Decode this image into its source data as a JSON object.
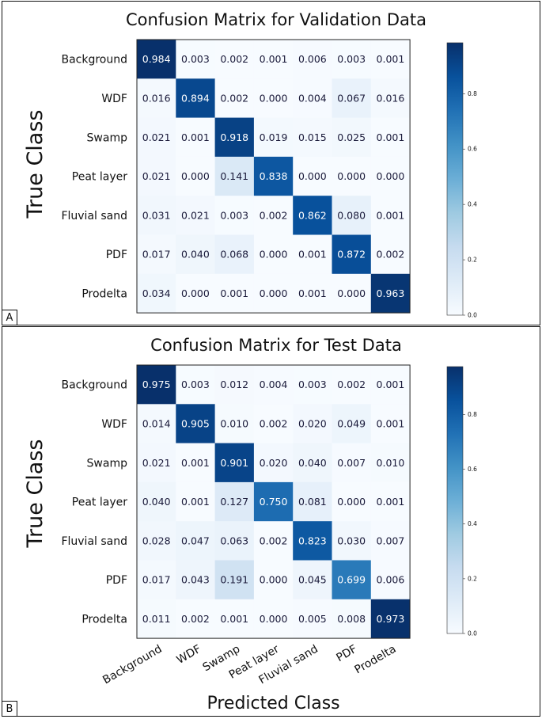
{
  "chart_data": [
    {
      "type": "heatmap",
      "panel": "A",
      "title": "Confusion Matrix for Validation Data",
      "ylabel": "True Class",
      "xlabel": "",
      "row_labels": [
        "Background",
        "WDF",
        "Swamp",
        "Peat layer",
        "Fluvial sand",
        "PDF",
        "Prodelta"
      ],
      "col_labels": [],
      "values": [
        [
          0.984,
          0.003,
          0.002,
          0.001,
          0.006,
          0.003,
          0.001
        ],
        [
          0.016,
          0.894,
          0.002,
          0.0,
          0.004,
          0.067,
          0.016
        ],
        [
          0.021,
          0.001,
          0.918,
          0.019,
          0.015,
          0.025,
          0.001
        ],
        [
          0.021,
          0.0,
          0.141,
          0.838,
          0.0,
          0.0,
          0.0
        ],
        [
          0.031,
          0.021,
          0.003,
          0.002,
          0.862,
          0.08,
          0.001
        ],
        [
          0.017,
          0.04,
          0.068,
          0.0,
          0.001,
          0.872,
          0.002
        ],
        [
          0.034,
          0.0,
          0.001,
          0.0,
          0.001,
          0.0,
          0.963
        ]
      ],
      "colorbar": {
        "ticks": [
          "0.0",
          "0.2",
          "0.4",
          "0.6",
          "0.8"
        ],
        "tick_values": [
          0,
          0.2,
          0.4,
          0.6,
          0.8
        ],
        "range": [
          0,
          0.984
        ]
      },
      "colormap": [
        "#f7fbff",
        "#deebf7",
        "#c6dbef",
        "#9ecae1",
        "#6baed6",
        "#4292c6",
        "#2171b5",
        "#08519c",
        "#08306b"
      ]
    },
    {
      "type": "heatmap",
      "panel": "B",
      "title": "Confusion Matrix for Test Data",
      "ylabel": "True Class",
      "xlabel": "Predicted Class",
      "row_labels": [
        "Background",
        "WDF",
        "Swamp",
        "Peat layer",
        "Fluvial sand",
        "PDF",
        "Prodelta"
      ],
      "col_labels": [
        "Background",
        "WDF",
        "Swamp",
        "Peat layer",
        "Fluvial sand",
        "PDF",
        "Prodelta"
      ],
      "values": [
        [
          0.975,
          0.003,
          0.012,
          0.004,
          0.003,
          0.002,
          0.001
        ],
        [
          0.014,
          0.905,
          0.01,
          0.002,
          0.02,
          0.049,
          0.001
        ],
        [
          0.021,
          0.001,
          0.901,
          0.02,
          0.04,
          0.007,
          0.01
        ],
        [
          0.04,
          0.001,
          0.127,
          0.75,
          0.081,
          0.0,
          0.001
        ],
        [
          0.028,
          0.047,
          0.063,
          0.002,
          0.823,
          0.03,
          0.007
        ],
        [
          0.017,
          0.043,
          0.191,
          0.0,
          0.045,
          0.699,
          0.006
        ],
        [
          0.011,
          0.002,
          0.001,
          0.0,
          0.005,
          0.008,
          0.973
        ]
      ],
      "colorbar": {
        "ticks": [
          "0.0",
          "0.2",
          "0.4",
          "0.6",
          "0.8"
        ],
        "tick_values": [
          0,
          0.2,
          0.4,
          0.6,
          0.8
        ],
        "range": [
          0,
          0.975
        ]
      },
      "colormap": [
        "#f7fbff",
        "#deebf7",
        "#c6dbef",
        "#9ecae1",
        "#6baed6",
        "#4292c6",
        "#2171b5",
        "#08519c",
        "#08306b"
      ]
    }
  ]
}
